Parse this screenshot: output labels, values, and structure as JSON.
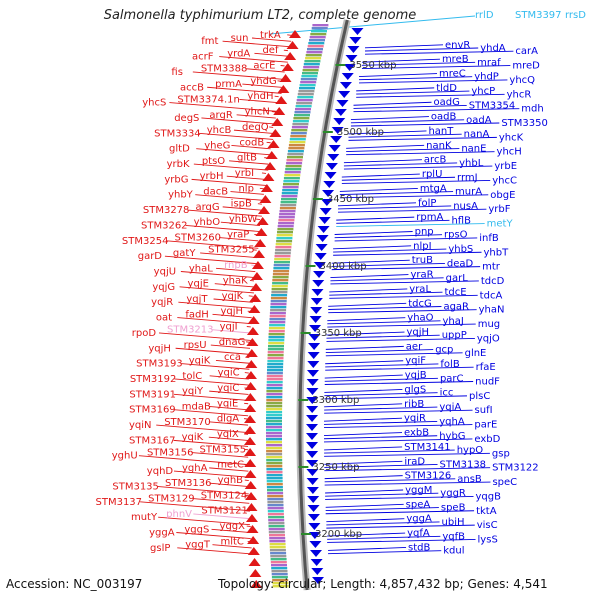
{
  "title": "Salmonella typhimurium LT2, complete genome",
  "footer": {
    "accession": "Accession: NC_003197",
    "summary": "Topology: circular; Length: 4,857,432 bp; Genes: 4,541"
  },
  "colors": {
    "forward": "#0000e0",
    "reverse": "#e01818",
    "rna": "#33bbee",
    "pseudo": "#f0a0d0",
    "backbone": "#888888",
    "tick": "#2a8a2a"
  },
  "kbp_ticks": [
    "3550 kbp",
    "3500 kbp",
    "3450 kbp",
    "3400 kbp",
    "3350 kbp",
    "3300 kbp",
    "3250 kbp",
    "3200 kbp"
  ],
  "top_labels": [
    "rrlD",
    "STM3397",
    "rrsD"
  ],
  "reverse_labels": [
    "trkA",
    "sun",
    "fmt",
    "def",
    "yrdA",
    "acrF",
    "acrE",
    "STM3388",
    "fis",
    "yhdG",
    "prmA",
    "accB",
    "yhdH",
    "STM3374.1n",
    "yhcS",
    "yhcN",
    "argR",
    "degS",
    "degQ",
    "yhcB",
    "STM3334",
    "codB",
    "yheG",
    "gltD",
    "gltB",
    "ptsO",
    "yrbK",
    "yrbI",
    "yrbH",
    "yrbG",
    "nlp",
    "dacB",
    "yhbY",
    "ispB",
    "argG",
    "STM3278",
    "yhbW",
    "yhbO",
    "STM3262",
    "yraP",
    "STM3260",
    "STM3254",
    "STM3255",
    "gatY",
    "garD",
    "rnpB",
    "yhaL",
    "yqjU",
    "yhaK",
    "yqjE",
    "yqjG",
    "yqjK",
    "yqjT",
    "yqjR",
    "yqjH",
    "fadH",
    "oat",
    "yqjI",
    "STM3213",
    "rpoD",
    "dnaG",
    "rpsU",
    "yqjH",
    "cca",
    "yqiK",
    "STM3193",
    "yqiC",
    "tolC",
    "STM3192",
    "yqiC",
    "yqiY",
    "STM3191",
    "yqiE",
    "mdaB",
    "STM3169",
    "dlgA",
    "STM3170",
    "yqiN",
    "yqiX",
    "yqiK",
    "STM3167",
    "STM3155",
    "STM3156",
    "yghU",
    "metC",
    "yghA",
    "yqhD",
    "yghB",
    "STM3136",
    "STM3135",
    "STM3124",
    "STM3129",
    "STM3137",
    "STM3121",
    "phnV",
    "mutY",
    "yggX",
    "yggS",
    "yggA",
    "mltC",
    "yggT",
    "gslP"
  ],
  "forward_labels": [
    "envR",
    "yhdA",
    "carA",
    "mreB",
    "mraf",
    "mreD",
    "mreC",
    "yhdP",
    "yhcQ",
    "tldD",
    "yhcP",
    "yhcR",
    "oadG",
    "STM3354",
    "mdh",
    "oadB",
    "oadA",
    "STM3350",
    "hanT",
    "nanA",
    "yhcK",
    "nanK",
    "nanE",
    "yhcH",
    "arcB",
    "yhbL",
    "yrbE",
    "rplU",
    "rrmJ",
    "yhcC",
    "mtgA",
    "murA",
    "obgE",
    "folP",
    "nusA",
    "yrbF",
    "rpmA",
    "hflB",
    "metY",
    "pnp",
    "rpsO",
    "infB",
    "nlpI",
    "yhbS",
    "yhbT",
    "truB",
    "deaD",
    "mtr",
    "yraR",
    "garL",
    "tdcD",
    "yraL",
    "tdcE",
    "tdcA",
    "tdcG",
    "agaR",
    "yhaN",
    "yhaO",
    "yhaJ",
    "mug",
    "yqjH",
    "uppP",
    "yqjO",
    "aer",
    "gcp",
    "glnE",
    "yqiF",
    "folB",
    "rfaE",
    "yqjB",
    "parC",
    "nudF",
    "glgS",
    "icc",
    "plsC",
    "ribB",
    "yqiA",
    "sufI",
    "yqiR",
    "yqhA",
    "parE",
    "exbB",
    "hybG",
    "exbD",
    "STM3141",
    "hypO",
    "gsp",
    "iraD",
    "STM3138",
    "STM3122",
    "STM3126",
    "ansB",
    "speC",
    "yggM",
    "yggR",
    "yqgB",
    "speA",
    "speB",
    "tktA",
    "yggA",
    "ubiH",
    "visC",
    "yqfA",
    "yqfB",
    "lysS",
    "stdB",
    "kdul"
  ],
  "rna_labels": [
    "rrlD",
    "STM3397",
    "rrsD",
    "metY"
  ],
  "pseudo_labels": [
    "STM3213",
    "rnpB",
    "phnV"
  ]
}
